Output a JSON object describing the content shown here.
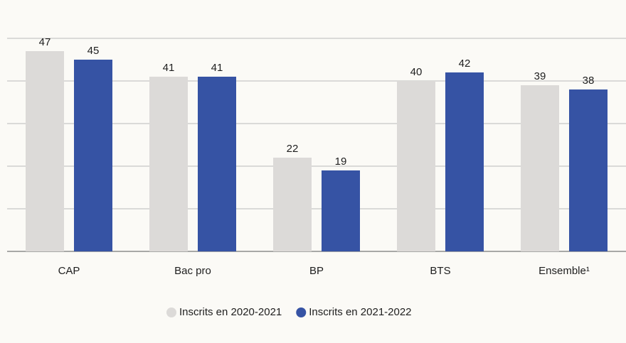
{
  "chart_data": {
    "type": "bar",
    "categories": [
      "CAP",
      "Bac pro",
      "BP",
      "BTS",
      "Ensemble¹"
    ],
    "series": [
      {
        "name": "Inscrits en 2020-2021",
        "color": "#dcdad8",
        "values": [
          47,
          41,
          22,
          40,
          39
        ]
      },
      {
        "name": "Inscrits en 2021-2022",
        "color": "#3653a4",
        "values": [
          45,
          41,
          19,
          42,
          38
        ]
      }
    ],
    "ylim": [
      0,
      50
    ],
    "yticks": [
      0,
      10,
      20,
      30,
      40,
      50
    ],
    "grid": true,
    "legend": "bottom"
  }
}
